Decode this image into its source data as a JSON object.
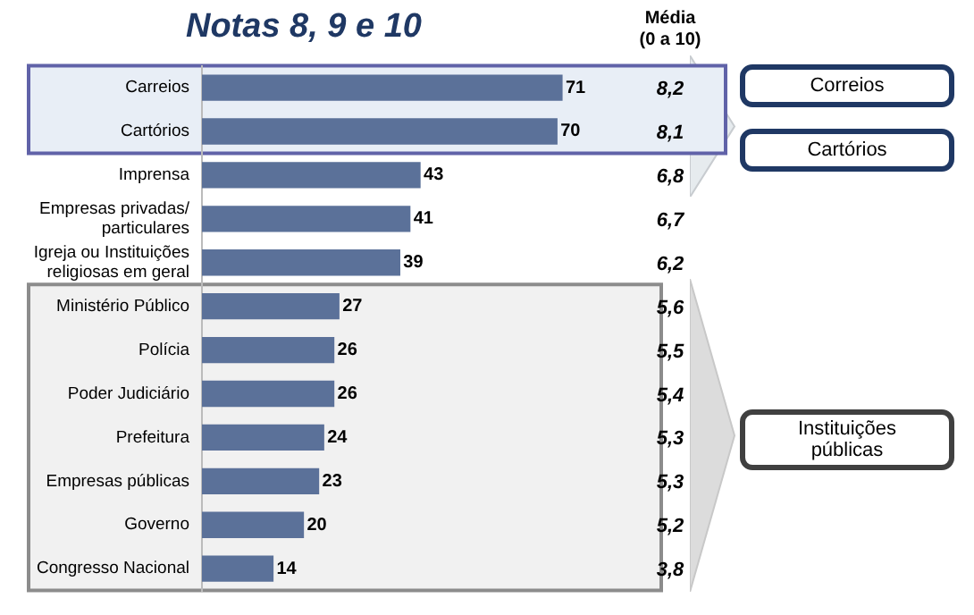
{
  "chart_data": {
    "type": "bar",
    "orientation": "horizontal",
    "title": "Notas 8, 9 e 10",
    "categories": [
      "Carreios",
      "Cartórios",
      "Imprensa",
      "Empresas privadas/\nparticulares",
      "Igreja ou Instituições\nreligiosas em geral",
      "Ministério Público",
      "Polícia",
      "Poder Judiciário",
      "Prefeitura",
      "Empresas públicas",
      "Governo",
      "Congresso Nacional"
    ],
    "values": [
      71,
      70,
      43,
      41,
      39,
      27,
      26,
      26,
      24,
      23,
      20,
      14
    ],
    "color": "#5b7199",
    "data_labels": true,
    "legend": false,
    "grid": false,
    "tick_labels": "y",
    "bands": [
      {
        "axis": "y",
        "from": "Carreios",
        "to": "Cartórios",
        "color": "#e8eef6"
      },
      {
        "axis": "y",
        "from": "Ministério Público",
        "to": "Congresso Nacional",
        "color": "#f1f1f1"
      }
    ],
    "annotations": [
      "Média\n(0 a 10)",
      "8,2",
      "8,1",
      "6,8",
      "6,7",
      "6,2",
      "5,6",
      "5,5",
      "5,4",
      "5,3",
      "5,3",
      "5,2",
      "3,8",
      "Correios",
      "Cartórios",
      "Instituições públicas"
    ]
  }
}
